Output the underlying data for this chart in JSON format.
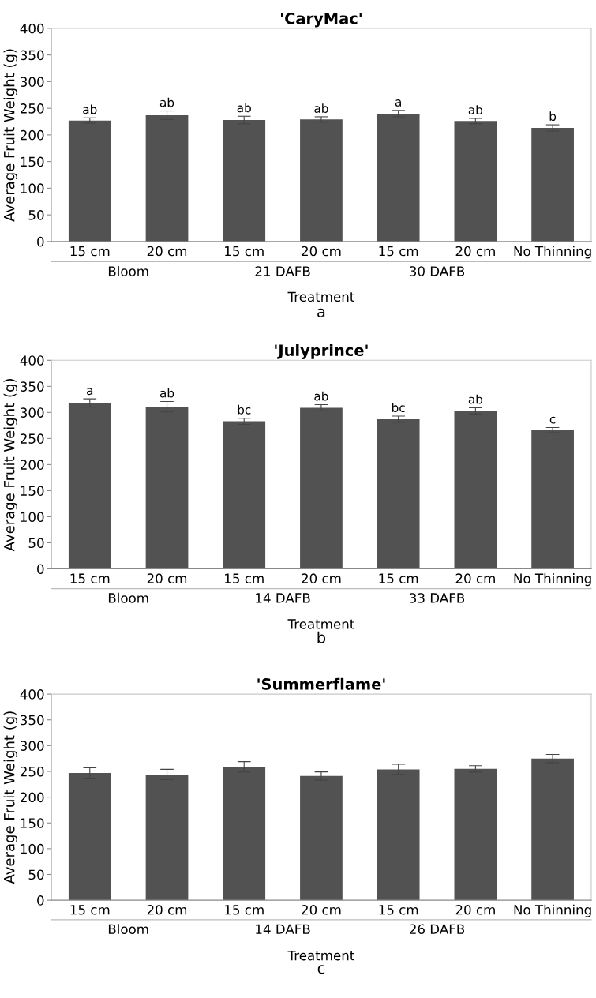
{
  "chart_data": [
    {
      "type": "bar",
      "title": "'CaryMac'",
      "xlabel": "Treatment",
      "ylabel": "Average Fruit Weight (g)",
      "categories": [
        "15 cm",
        "20 cm",
        "15 cm",
        "20 cm",
        "15 cm",
        "20 cm",
        "No Thinning"
      ],
      "values": [
        227,
        237,
        228,
        229,
        240,
        226,
        213
      ],
      "errors": [
        5,
        8,
        7,
        5,
        6,
        5,
        6
      ],
      "value_labels": [
        "ab",
        "ab",
        "ab",
        "ab",
        "a",
        "ab",
        "b"
      ],
      "color": "#525252",
      "ylim": [
        0,
        400
      ],
      "yticks": [
        0,
        50,
        100,
        150,
        200,
        250,
        300,
        350,
        400
      ],
      "grid": false,
      "annotations": [
        "Bloom",
        "21 DAFB",
        "30 DAFB",
        "a"
      ]
    },
    {
      "type": "bar",
      "title": "'Julyprince'",
      "xlabel": "Treatment",
      "ylabel": "Average Fruit Weight (g)",
      "categories": [
        "15 cm",
        "20 cm",
        "15 cm",
        "20 cm",
        "15 cm",
        "20 cm",
        "No Thinning"
      ],
      "values": [
        318,
        311,
        283,
        309,
        287,
        303,
        266
      ],
      "errors": [
        8,
        10,
        6,
        6,
        6,
        6,
        5
      ],
      "value_labels": [
        "a",
        "ab",
        "bc",
        "ab",
        "bc",
        "ab",
        "c"
      ],
      "color": "#525252",
      "ylim": [
        0,
        400
      ],
      "yticks": [
        0,
        50,
        100,
        150,
        200,
        250,
        300,
        350,
        400
      ],
      "grid": false,
      "annotations": [
        "Bloom",
        "14 DAFB",
        "33 DAFB",
        "b"
      ]
    },
    {
      "type": "bar",
      "title": "'Summerflame'",
      "xlabel": "Treatment",
      "ylabel": "Average Fruit Weight (g)",
      "categories": [
        "15 cm",
        "20 cm",
        "15 cm",
        "20 cm",
        "15 cm",
        "20 cm",
        "No Thinning"
      ],
      "values": [
        247,
        244,
        259,
        241,
        254,
        255,
        275
      ],
      "errors": [
        10,
        10,
        10,
        8,
        10,
        6,
        8
      ],
      "color": "#525252",
      "ylim": [
        0,
        400
      ],
      "yticks": [
        0,
        50,
        100,
        150,
        200,
        250,
        300,
        350,
        400
      ],
      "grid": false,
      "annotations": [
        "Bloom",
        "14 DAFB",
        "26 DAFB",
        "c"
      ]
    }
  ]
}
